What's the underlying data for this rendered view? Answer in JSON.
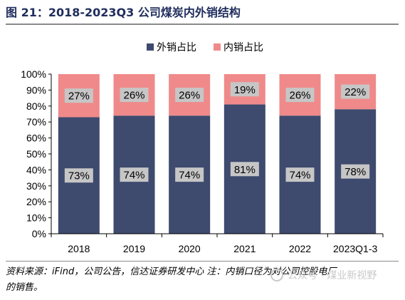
{
  "title": "图 21：2018-2023Q3 公司煤炭内外销结构",
  "source": "资料来源：iFind，公司公告，信达证券研发中心 注：内销口径为对公司控股电厂的销售。",
  "watermark": "公众号 · 煤业新视野",
  "chart_data": {
    "type": "bar",
    "stacked": true,
    "categories": [
      "2018",
      "2019",
      "2020",
      "2021",
      "2022",
      "2023Q1-3"
    ],
    "series": [
      {
        "name": "外销占比",
        "values": [
          73,
          74,
          74,
          81,
          74,
          78
        ],
        "labels": [
          "73%",
          "74%",
          "74%",
          "81%",
          "74%",
          "78%"
        ],
        "color": "#3e4a6e"
      },
      {
        "name": "内销占比",
        "values": [
          27,
          26,
          26,
          19,
          26,
          22
        ],
        "labels": [
          "27%",
          "26%",
          "26%",
          "19%",
          "26%",
          "22%"
        ],
        "color": "#f08a8a"
      }
    ],
    "yticks": [
      "0%",
      "10%",
      "20%",
      "30%",
      "40%",
      "50%",
      "60%",
      "70%",
      "80%",
      "90%",
      "100%"
    ],
    "ylim": [
      0,
      100
    ],
    "legend_position": "top-center",
    "grid": false
  }
}
